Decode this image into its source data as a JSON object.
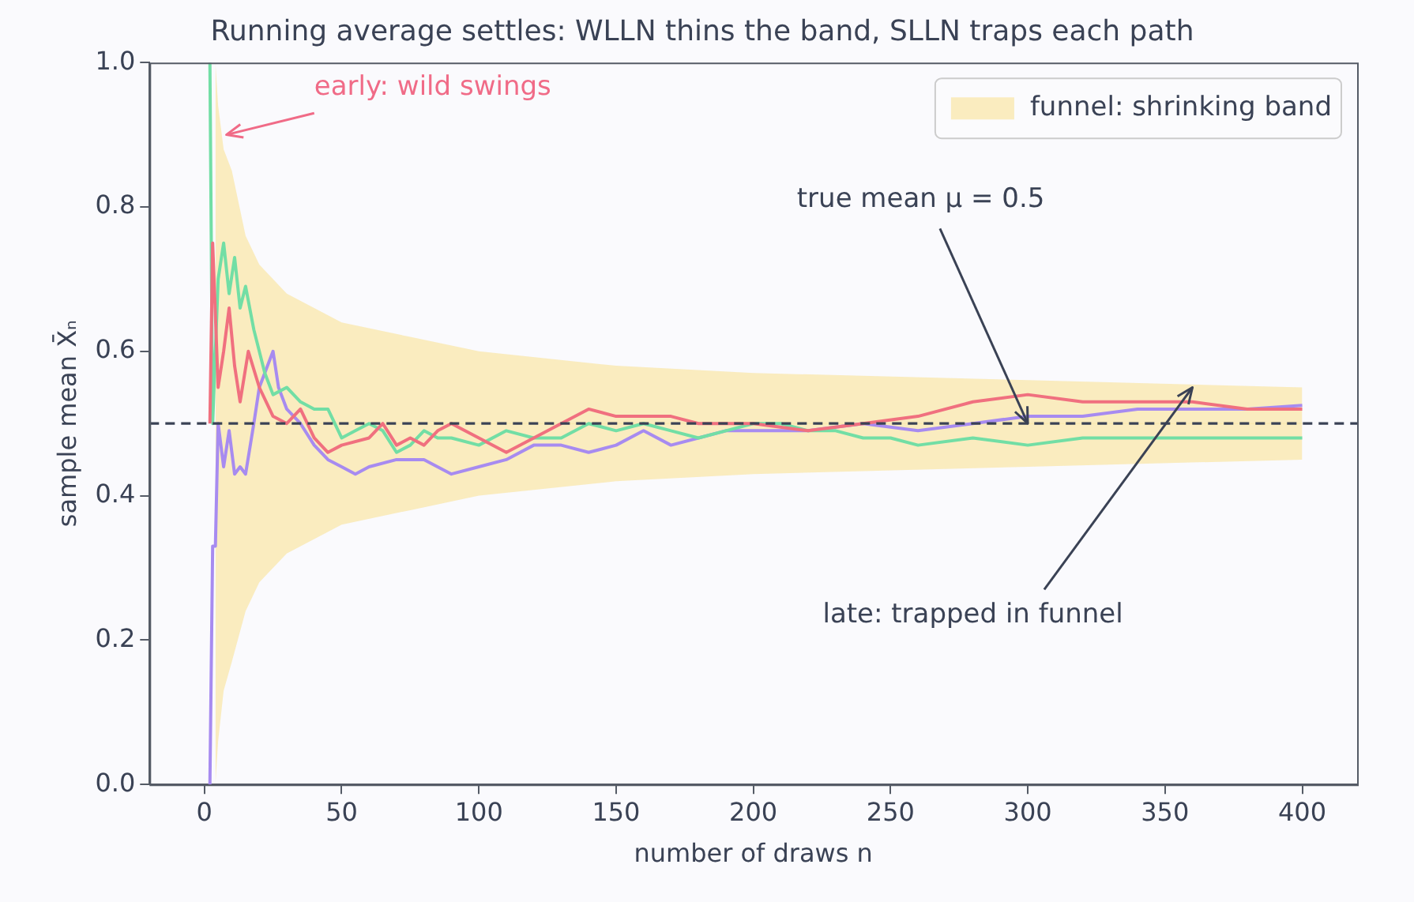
{
  "chart_data": {
    "type": "line",
    "title": "Running average settles: WLLN thins the band, SLLN traps each path",
    "xlabel": "number of draws n",
    "ylabel": "sample mean X̄ₙ",
    "xlim": [
      -20,
      420
    ],
    "xticks": [
      0,
      50,
      100,
      150,
      200,
      250,
      300,
      350,
      400
    ],
    "ylim": [
      0,
      1
    ],
    "yticks": [
      {
        "value": 0,
        "label": "0.0"
      },
      {
        "value": 0.2,
        "label": "0.2"
      },
      {
        "value": 0.4,
        "label": "0.4"
      },
      {
        "value": 0.6,
        "label": "0.6"
      },
      {
        "value": 0.8,
        "label": "0.8"
      },
      {
        "value": 1,
        "label": "1.0"
      }
    ],
    "grid": false,
    "legend": "top right",
    "marker": "none",
    "series": [
      {
        "name": "funnel: shrinking band",
        "type": "line",
        "color": "#f9e9b4",
        "x": [
          4,
          5,
          7,
          10,
          15,
          20,
          30,
          50,
          75,
          100,
          150,
          200,
          300,
          400
        ],
        "values": [
          0.5,
          0.5,
          0.5,
          0.5,
          0.5,
          0.5,
          0.5,
          0.5,
          0.5,
          0.5,
          0.5,
          0.5,
          0.5,
          0.5
        ],
        "lower": [
          0,
          0.06,
          0.13,
          0.17,
          0.24,
          0.28,
          0.32,
          0.36,
          0.38,
          0.4,
          0.42,
          0.43,
          0.44,
          0.45
        ],
        "upper": [
          1,
          0.94,
          0.88,
          0.85,
          0.76,
          0.72,
          0.68,
          0.64,
          0.62,
          0.6,
          0.58,
          0.57,
          0.56,
          0.55
        ]
      },
      {
        "type": "line",
        "color": "#f0707f",
        "x": [
          2,
          3,
          5,
          7,
          9,
          11,
          13,
          16,
          20,
          25,
          30,
          35,
          40,
          45,
          50,
          60,
          65,
          70,
          75,
          80,
          85,
          90,
          100,
          110,
          120,
          130,
          140,
          150,
          160,
          170,
          180,
          190,
          200,
          220,
          240,
          260,
          280,
          300,
          320,
          340,
          360,
          380,
          400
        ],
        "values": [
          0.5,
          0.75,
          0.55,
          0.6,
          0.66,
          0.58,
          0.53,
          0.6,
          0.55,
          0.51,
          0.5,
          0.52,
          0.48,
          0.46,
          0.47,
          0.48,
          0.5,
          0.47,
          0.48,
          0.47,
          0.49,
          0.5,
          0.48,
          0.46,
          0.48,
          0.5,
          0.52,
          0.51,
          0.51,
          0.51,
          0.5,
          0.5,
          0.5,
          0.49,
          0.5,
          0.51,
          0.53,
          0.54,
          0.53,
          0.53,
          0.53,
          0.52,
          0.52
        ]
      },
      {
        "type": "line",
        "color": "#72dea5",
        "x": [
          2,
          3,
          5,
          7,
          9,
          11,
          13,
          15,
          18,
          22,
          25,
          30,
          35,
          40,
          45,
          50,
          55,
          60,
          65,
          70,
          75,
          80,
          85,
          90,
          100,
          110,
          120,
          130,
          140,
          150,
          160,
          170,
          180,
          190,
          200,
          210,
          220,
          230,
          240,
          250,
          260,
          280,
          300,
          320,
          340,
          360,
          380,
          400
        ],
        "values": [
          1,
          0.5,
          0.7,
          0.75,
          0.68,
          0.73,
          0.66,
          0.69,
          0.63,
          0.57,
          0.54,
          0.55,
          0.53,
          0.52,
          0.52,
          0.48,
          0.49,
          0.5,
          0.49,
          0.46,
          0.47,
          0.49,
          0.48,
          0.48,
          0.47,
          0.49,
          0.48,
          0.48,
          0.5,
          0.49,
          0.5,
          0.49,
          0.48,
          0.49,
          0.5,
          0.5,
          0.49,
          0.49,
          0.48,
          0.48,
          0.47,
          0.48,
          0.47,
          0.48,
          0.48,
          0.48,
          0.48,
          0.48
        ]
      },
      {
        "type": "line",
        "color": "#a78bf0",
        "x": [
          2,
          3,
          4,
          5,
          7,
          9,
          11,
          13,
          15,
          18,
          20,
          23,
          25,
          27,
          30,
          35,
          40,
          45,
          50,
          55,
          60,
          70,
          80,
          90,
          100,
          110,
          120,
          130,
          140,
          150,
          160,
          170,
          180,
          190,
          200,
          220,
          240,
          260,
          280,
          300,
          320,
          340,
          360,
          380,
          400
        ],
        "values": [
          0,
          0.33,
          0.33,
          0.5,
          0.44,
          0.49,
          0.43,
          0.44,
          0.43,
          0.5,
          0.55,
          0.58,
          0.6,
          0.55,
          0.52,
          0.5,
          0.47,
          0.45,
          0.44,
          0.43,
          0.44,
          0.45,
          0.45,
          0.43,
          0.44,
          0.45,
          0.47,
          0.47,
          0.46,
          0.47,
          0.49,
          0.47,
          0.48,
          0.49,
          0.49,
          0.49,
          0.5,
          0.49,
          0.5,
          0.51,
          0.51,
          0.52,
          0.52,
          0.52,
          0.525
        ]
      }
    ],
    "ref_lines": [
      {
        "axis": "y",
        "value": 0.5,
        "color": "#3a4255",
        "line_style": "dashed"
      }
    ],
    "annotations": [
      {
        "text": "early: wild swings",
        "x": 8,
        "y": 0.9
      },
      {
        "text": "true mean μ = 0.5",
        "x": 300,
        "y": 0.5
      },
      {
        "text": "late: trapped in funnel",
        "x": 360,
        "y": 0.55
      }
    ]
  }
}
